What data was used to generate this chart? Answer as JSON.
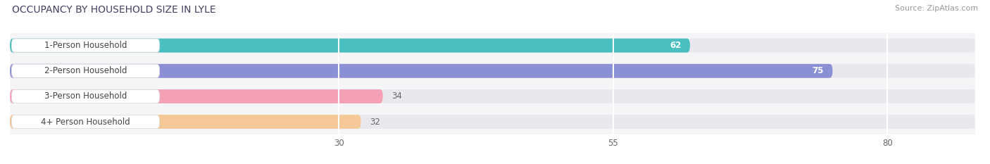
{
  "title": "OCCUPANCY BY HOUSEHOLD SIZE IN LYLE",
  "source": "Source: ZipAtlas.com",
  "categories": [
    "1-Person Household",
    "2-Person Household",
    "3-Person Household",
    "4+ Person Household"
  ],
  "values": [
    62,
    75,
    34,
    32
  ],
  "bar_colors": [
    "#49BFBF",
    "#8B8FD4",
    "#F4A0B5",
    "#F5C898"
  ],
  "bg_bar_color": "#E8E8EE",
  "label_bg_color": "#FFFFFF",
  "label_border_color": "#DDDDDD",
  "xticks": [
    30,
    55,
    80
  ],
  "xmin": 0,
  "xmax": 88,
  "figsize": [
    14.06,
    2.33
  ],
  "dpi": 100,
  "bar_height": 0.55,
  "label_font_size": 8.5,
  "value_font_size": 8.5,
  "title_font_size": 10,
  "source_font_size": 8,
  "fig_bg": "#FFFFFF",
  "axes_bg": "#F5F5F8",
  "title_color": "#404060",
  "source_color": "#999999",
  "value_color_inside": "#FFFFFF",
  "value_color_outside": "#666666",
  "label_color": "#444444",
  "grid_color": "#FFFFFF",
  "grid_lw": 1.5
}
